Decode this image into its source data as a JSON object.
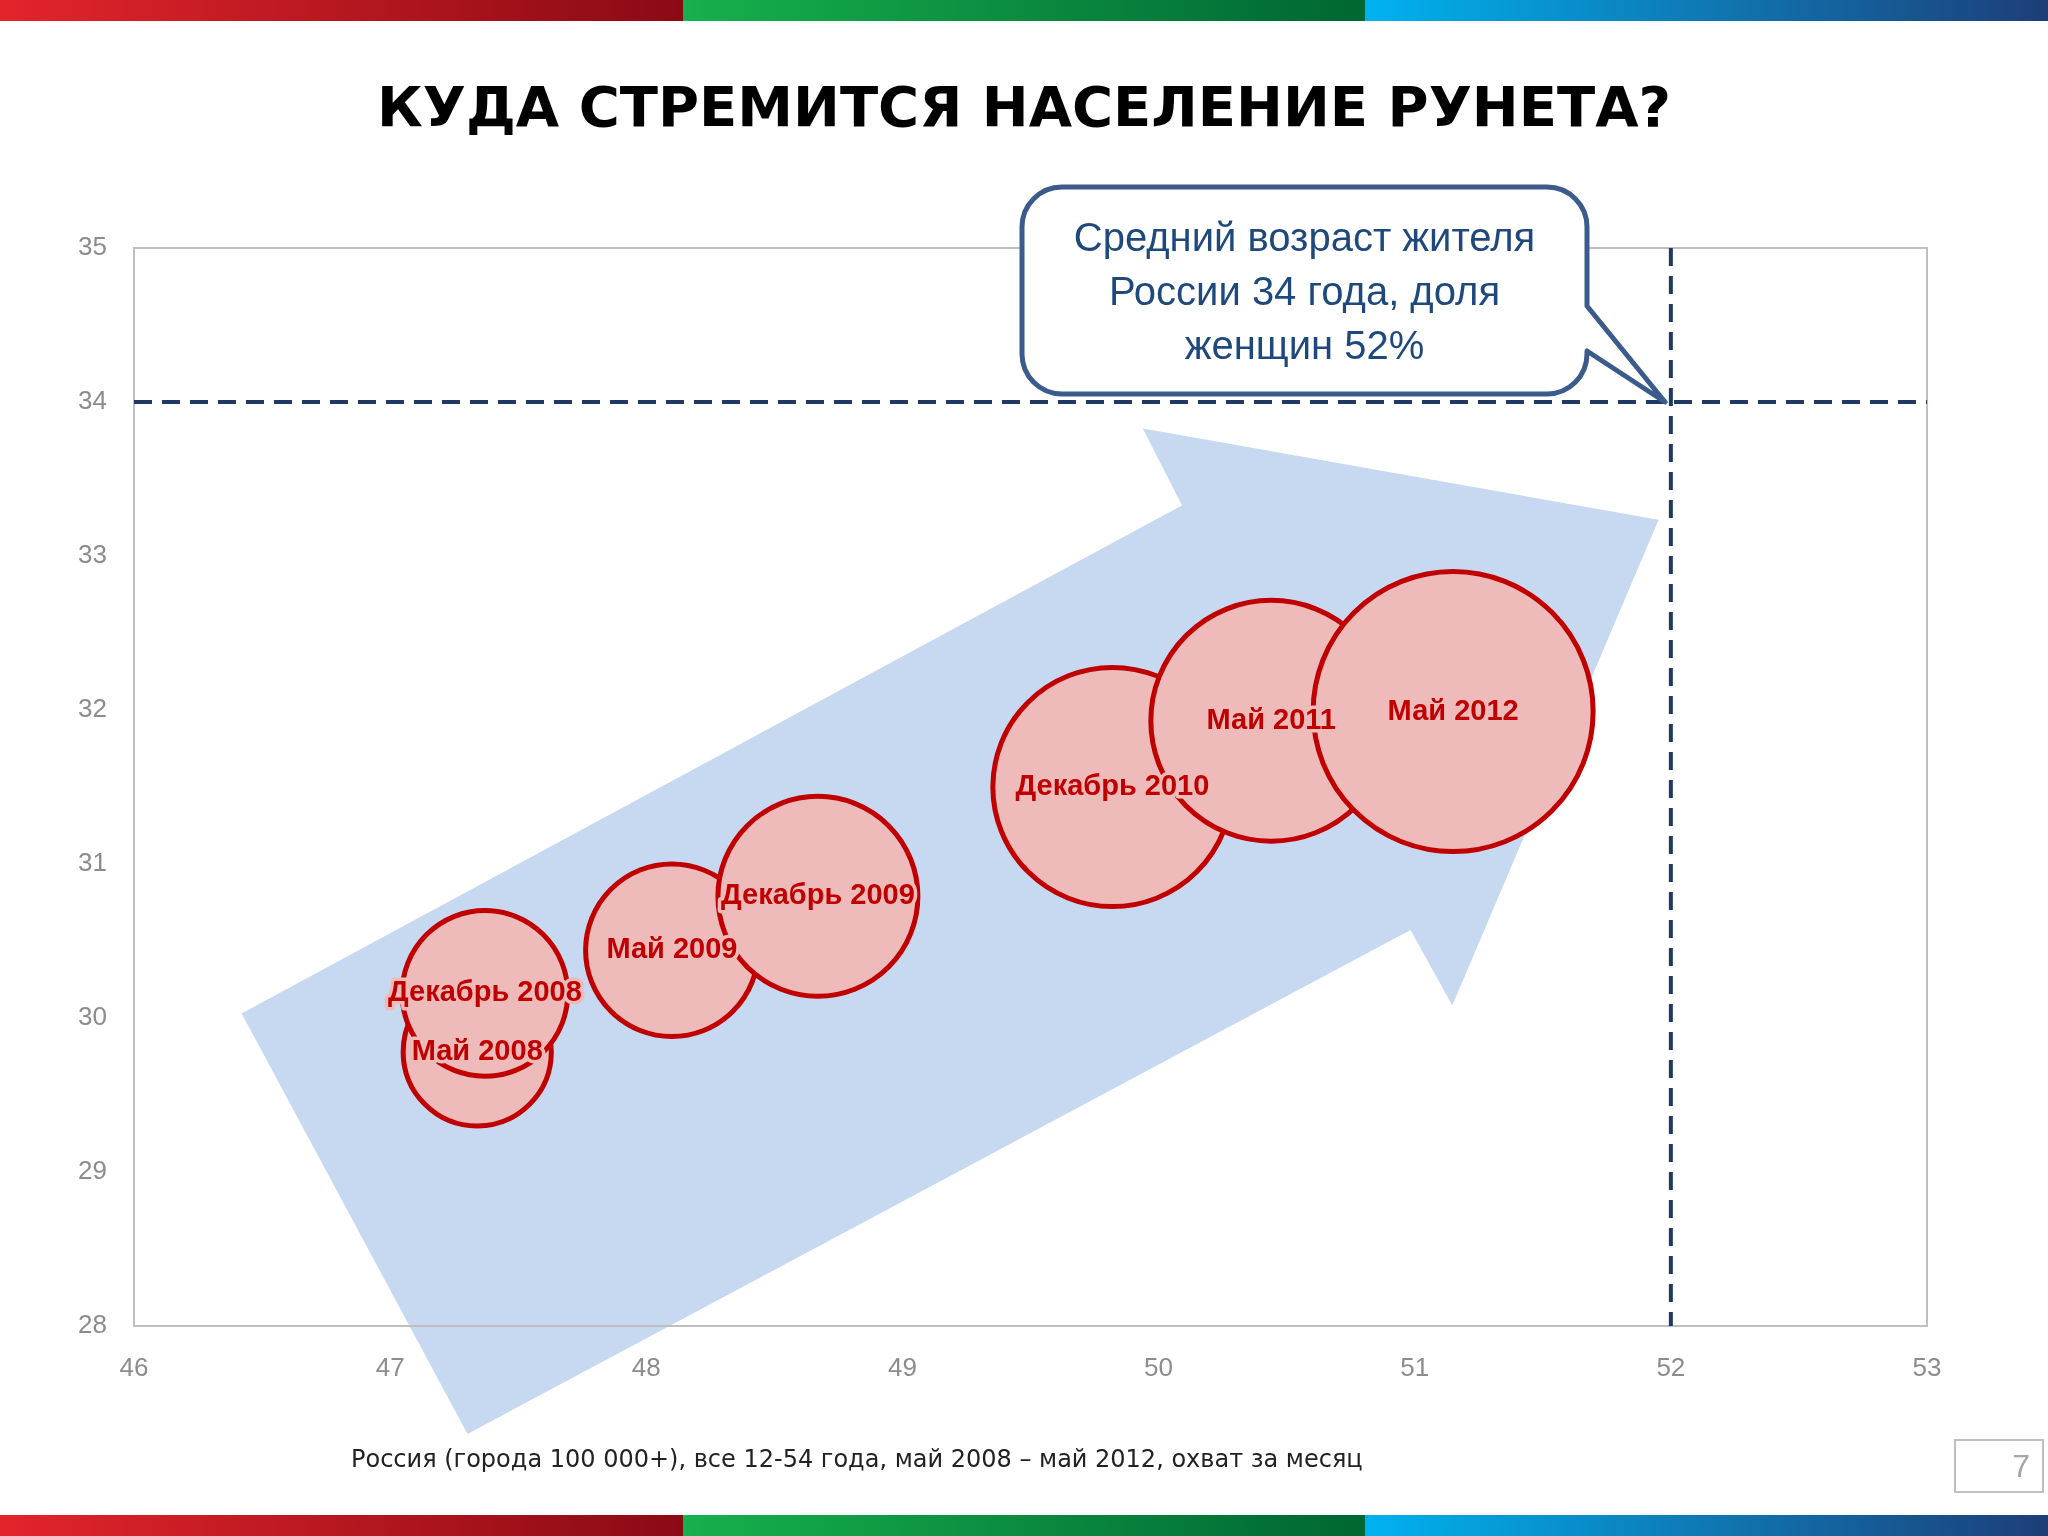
{
  "chart_data": {
    "type": "bubble",
    "title": "КУДА СТРЕМИТСЯ НАСЕЛЕНИЕ РУНЕТА?",
    "series": [
      {
        "name": "Май 2008",
        "color": "#c00000",
        "x": [
          47.34
        ],
        "values": [
          29.78
        ],
        "sizes": [
          0.28
        ]
      },
      {
        "name": "Декабрь 2008",
        "color": "#c00000",
        "x": [
          47.37
        ],
        "values": [
          30.16
        ],
        "sizes": [
          0.35
        ]
      },
      {
        "name": "Май 2009",
        "color": "#c00000",
        "x": [
          48.1
        ],
        "values": [
          30.44
        ],
        "sizes": [
          0.38
        ]
      },
      {
        "name": "Декабрь 2009",
        "color": "#c00000",
        "x": [
          48.67
        ],
        "values": [
          30.79
        ],
        "sizes": [
          0.51
        ]
      },
      {
        "name": "Декабрь 2010",
        "color": "#c00000",
        "x": [
          49.82
        ],
        "values": [
          31.5
        ],
        "sizes": [
          0.73
        ]
      },
      {
        "name": "Май 2011",
        "color": "#c00000",
        "x": [
          50.44
        ],
        "values": [
          31.93
        ],
        "sizes": [
          0.74
        ]
      },
      {
        "name": "Май 2012",
        "color": "#c00000",
        "x": [
          51.15
        ],
        "values": [
          31.99
        ],
        "sizes": [
          1
        ]
      }
    ],
    "xlim": [
      46,
      53
    ],
    "xticks": [
      46,
      47,
      48,
      49,
      50,
      51,
      52,
      53
    ],
    "ylim": [
      28,
      35
    ],
    "yticks": [
      28,
      29,
      30,
      31,
      32,
      33,
      34,
      35
    ],
    "ref_lines": [
      {
        "axis": "y",
        "value": 34,
        "color": "#1f3864",
        "line_style": "dashed"
      },
      {
        "axis": "x",
        "value": 52,
        "color": "#1f3864",
        "line_style": "dashed"
      }
    ],
    "annotations": [
      "Средний возраст жителя России 34 года, доля женщин 52%",
      "Россия (города 100 000+), все 12-54 года, май 2008 – май 2012, охват за месяц",
      "7"
    ],
    "grid": false,
    "legend": false
  }
}
